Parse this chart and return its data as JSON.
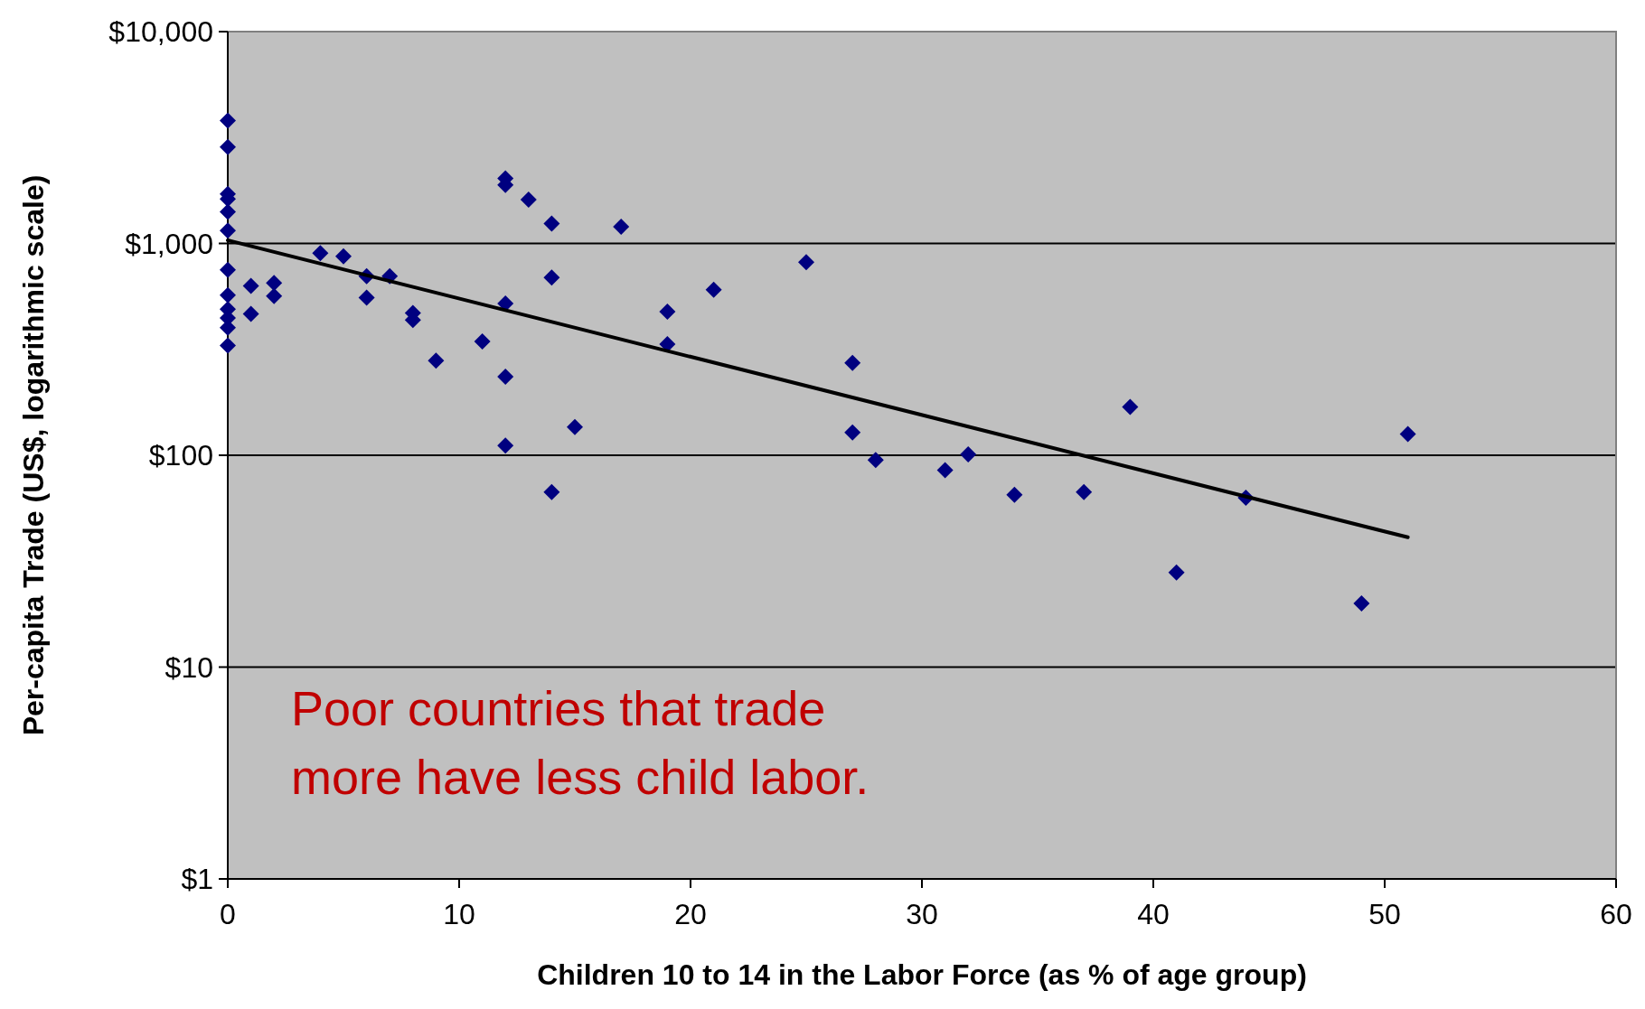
{
  "chart_data": {
    "type": "scatter",
    "xlabel": "Children 10 to 14 in the Labor Force (as % of age group)",
    "ylabel": "Per-capita Trade (US$, logarithmic scale)",
    "annotations": [
      "Poor countries that trade more have less child labor."
    ],
    "log": "y",
    "grid": "y",
    "xlim": [
      0,
      60
    ],
    "xticks": [
      0,
      10,
      20,
      30,
      40,
      50,
      60
    ],
    "ylim": [
      1,
      10000
    ],
    "yticks": [
      {
        "value": 1,
        "label": "$1"
      },
      {
        "value": 10,
        "label": "$10"
      },
      {
        "value": 100,
        "label": "$100"
      },
      {
        "value": 1000,
        "label": "$1,000"
      },
      {
        "value": 10000,
        "label": "$10,000"
      }
    ],
    "series": [
      {
        "marker": "diamond",
        "color": "#000080",
        "x": [
          0,
          0,
          0,
          0,
          0,
          0,
          0,
          0,
          0,
          0,
          0,
          0,
          1,
          1,
          2,
          2,
          4,
          5,
          6,
          6,
          7,
          8,
          8,
          9,
          11,
          12,
          12,
          12,
          12,
          12,
          13,
          14,
          14,
          14,
          15,
          17,
          19,
          19,
          21,
          25,
          27,
          27,
          28,
          31,
          32,
          34,
          37,
          39,
          41,
          44,
          49,
          51
        ],
        "values": [
          3800,
          2850,
          1710,
          1620,
          1410,
          1150,
          750,
          570,
          490,
          445,
          400,
          330,
          630,
          465,
          650,
          565,
          900,
          870,
          700,
          555,
          700,
          470,
          435,
          280,
          345,
          2030,
          1890,
          520,
          235,
          111,
          1610,
          1240,
          690,
          67,
          136,
          1200,
          477,
          335,
          605,
          815,
          273,
          128,
          95,
          85,
          101,
          65,
          67,
          169,
          28,
          63,
          20,
          126
        ]
      },
      {
        "type": "line",
        "marker": "none",
        "color": "#000000",
        "x": [
          0,
          51
        ],
        "values": [
          1035,
          41
        ]
      }
    ]
  }
}
